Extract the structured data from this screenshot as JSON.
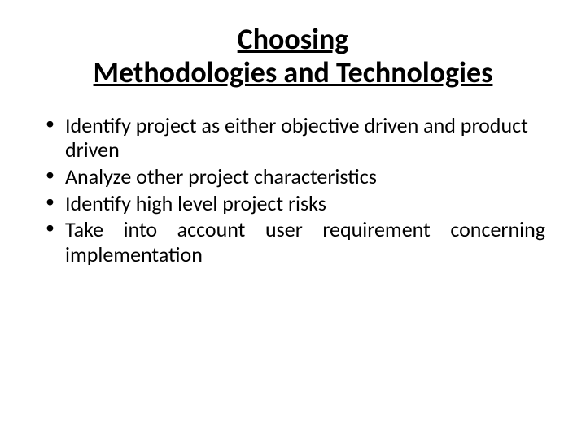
{
  "title_line1": "Choosing",
  "title_line2": "Methodologies and Technologies",
  "bullets": [
    "Identify project as either objective driven and product driven",
    "Analyze other project characteristics",
    "Identify high level project risks",
    "Take into account user requirement concerning implementation"
  ],
  "colors": {
    "background": "#ffffff",
    "text": "#000000"
  },
  "typography": {
    "title_fontsize": 36,
    "body_fontsize": 26,
    "font_family": "Calibri"
  },
  "justify_items": [
    3
  ]
}
